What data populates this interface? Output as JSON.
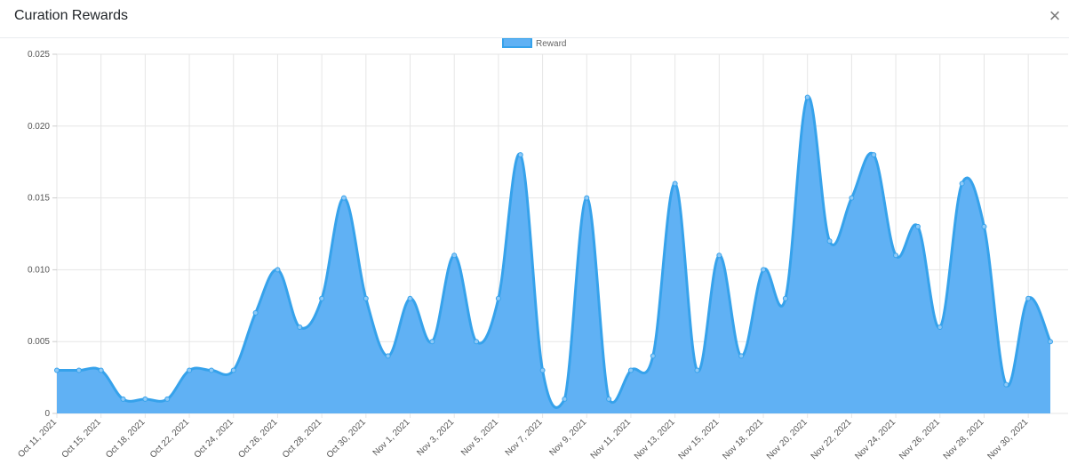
{
  "modal": {
    "title": "Curation Rewards",
    "close_label": "×"
  },
  "chart_data": {
    "type": "area",
    "title": "",
    "xlabel": "",
    "ylabel": "",
    "ylim": [
      0,
      0.025
    ],
    "y_ticks": [
      "0",
      "0.005",
      "0.010",
      "0.015",
      "0.020",
      "0.025"
    ],
    "grid": true,
    "legend": "top-center",
    "series": [
      {
        "name": "Reward",
        "color": "#36a2eb",
        "fill": "#60b1f4",
        "values": [
          0.003,
          0.003,
          0.003,
          0.001,
          0.001,
          0.001,
          0.003,
          0.003,
          0.003,
          0.007,
          0.01,
          0.006,
          0.008,
          0.015,
          0.008,
          0.004,
          0.008,
          0.005,
          0.011,
          0.005,
          0.008,
          0.018,
          0.003,
          0.001,
          0.015,
          0.001,
          0.003,
          0.004,
          0.016,
          0.003,
          0.011,
          0.004,
          0.01,
          0.008,
          0.022,
          0.012,
          0.015,
          0.018,
          0.011,
          0.013,
          0.006,
          0.016,
          0.013,
          0.002,
          0.008,
          0.005
        ]
      }
    ],
    "x_tick_labels": [
      "Oct 11, 2021",
      "Oct 15, 2021",
      "Oct 18, 2021",
      "Oct 22, 2021",
      "Oct 24, 2021",
      "Oct 26, 2021",
      "Oct 28, 2021",
      "Oct 30, 2021",
      "Nov 1, 2021",
      "Nov 3, 2021",
      "Nov 5, 2021",
      "Nov 7, 2021",
      "Nov 9, 2021",
      "Nov 11, 2021",
      "Nov 13, 2021",
      "Nov 15, 2021",
      "Nov 18, 2021",
      "Nov 20, 2021",
      "Nov 22, 2021",
      "Nov 24, 2021",
      "Nov 26, 2021",
      "Nov 28, 2021",
      "Nov 30, 2021"
    ]
  }
}
